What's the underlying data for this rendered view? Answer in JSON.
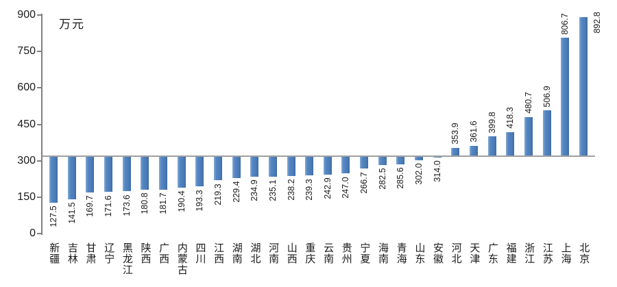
{
  "chart_data": {
    "type": "bar",
    "title": "",
    "ylabel": "万元",
    "xlabel": "",
    "categories": [
      "新疆",
      "吉林",
      "甘肃",
      "辽宁",
      "黑龙江",
      "陕西",
      "广西",
      "内蒙古",
      "四川",
      "江西",
      "湖南",
      "湖北",
      "河南",
      "山西",
      "重庆",
      "云南",
      "贵州",
      "宁夏",
      "海南",
      "青海",
      "山东",
      "安徽",
      "河北",
      "天津",
      "广东",
      "福建",
      "浙江",
      "江苏",
      "上海",
      "北京"
    ],
    "values": [
      127.5,
      141.5,
      169.7,
      171.6,
      173.6,
      180.8,
      181.7,
      190.4,
      193.3,
      219.3,
      229.4,
      234.9,
      235.1,
      238.2,
      239.3,
      242.9,
      247.0,
      266.7,
      282.5,
      285.6,
      302.0,
      314.0,
      353.9,
      361.6,
      399.8,
      418.3,
      480.7,
      506.9,
      806.7,
      892.8
    ],
    "ylim": [
      0,
      900
    ],
    "y_ticks": [
      0,
      150,
      300,
      450,
      600,
      750,
      900
    ],
    "axis_crossing": 318,
    "grid": false,
    "legend": false,
    "colors": {
      "bar": "#4F81BD",
      "crossing_line": "#a0a0a0",
      "axis": "#7f7f7f",
      "text": "#1a1a1a"
    }
  }
}
